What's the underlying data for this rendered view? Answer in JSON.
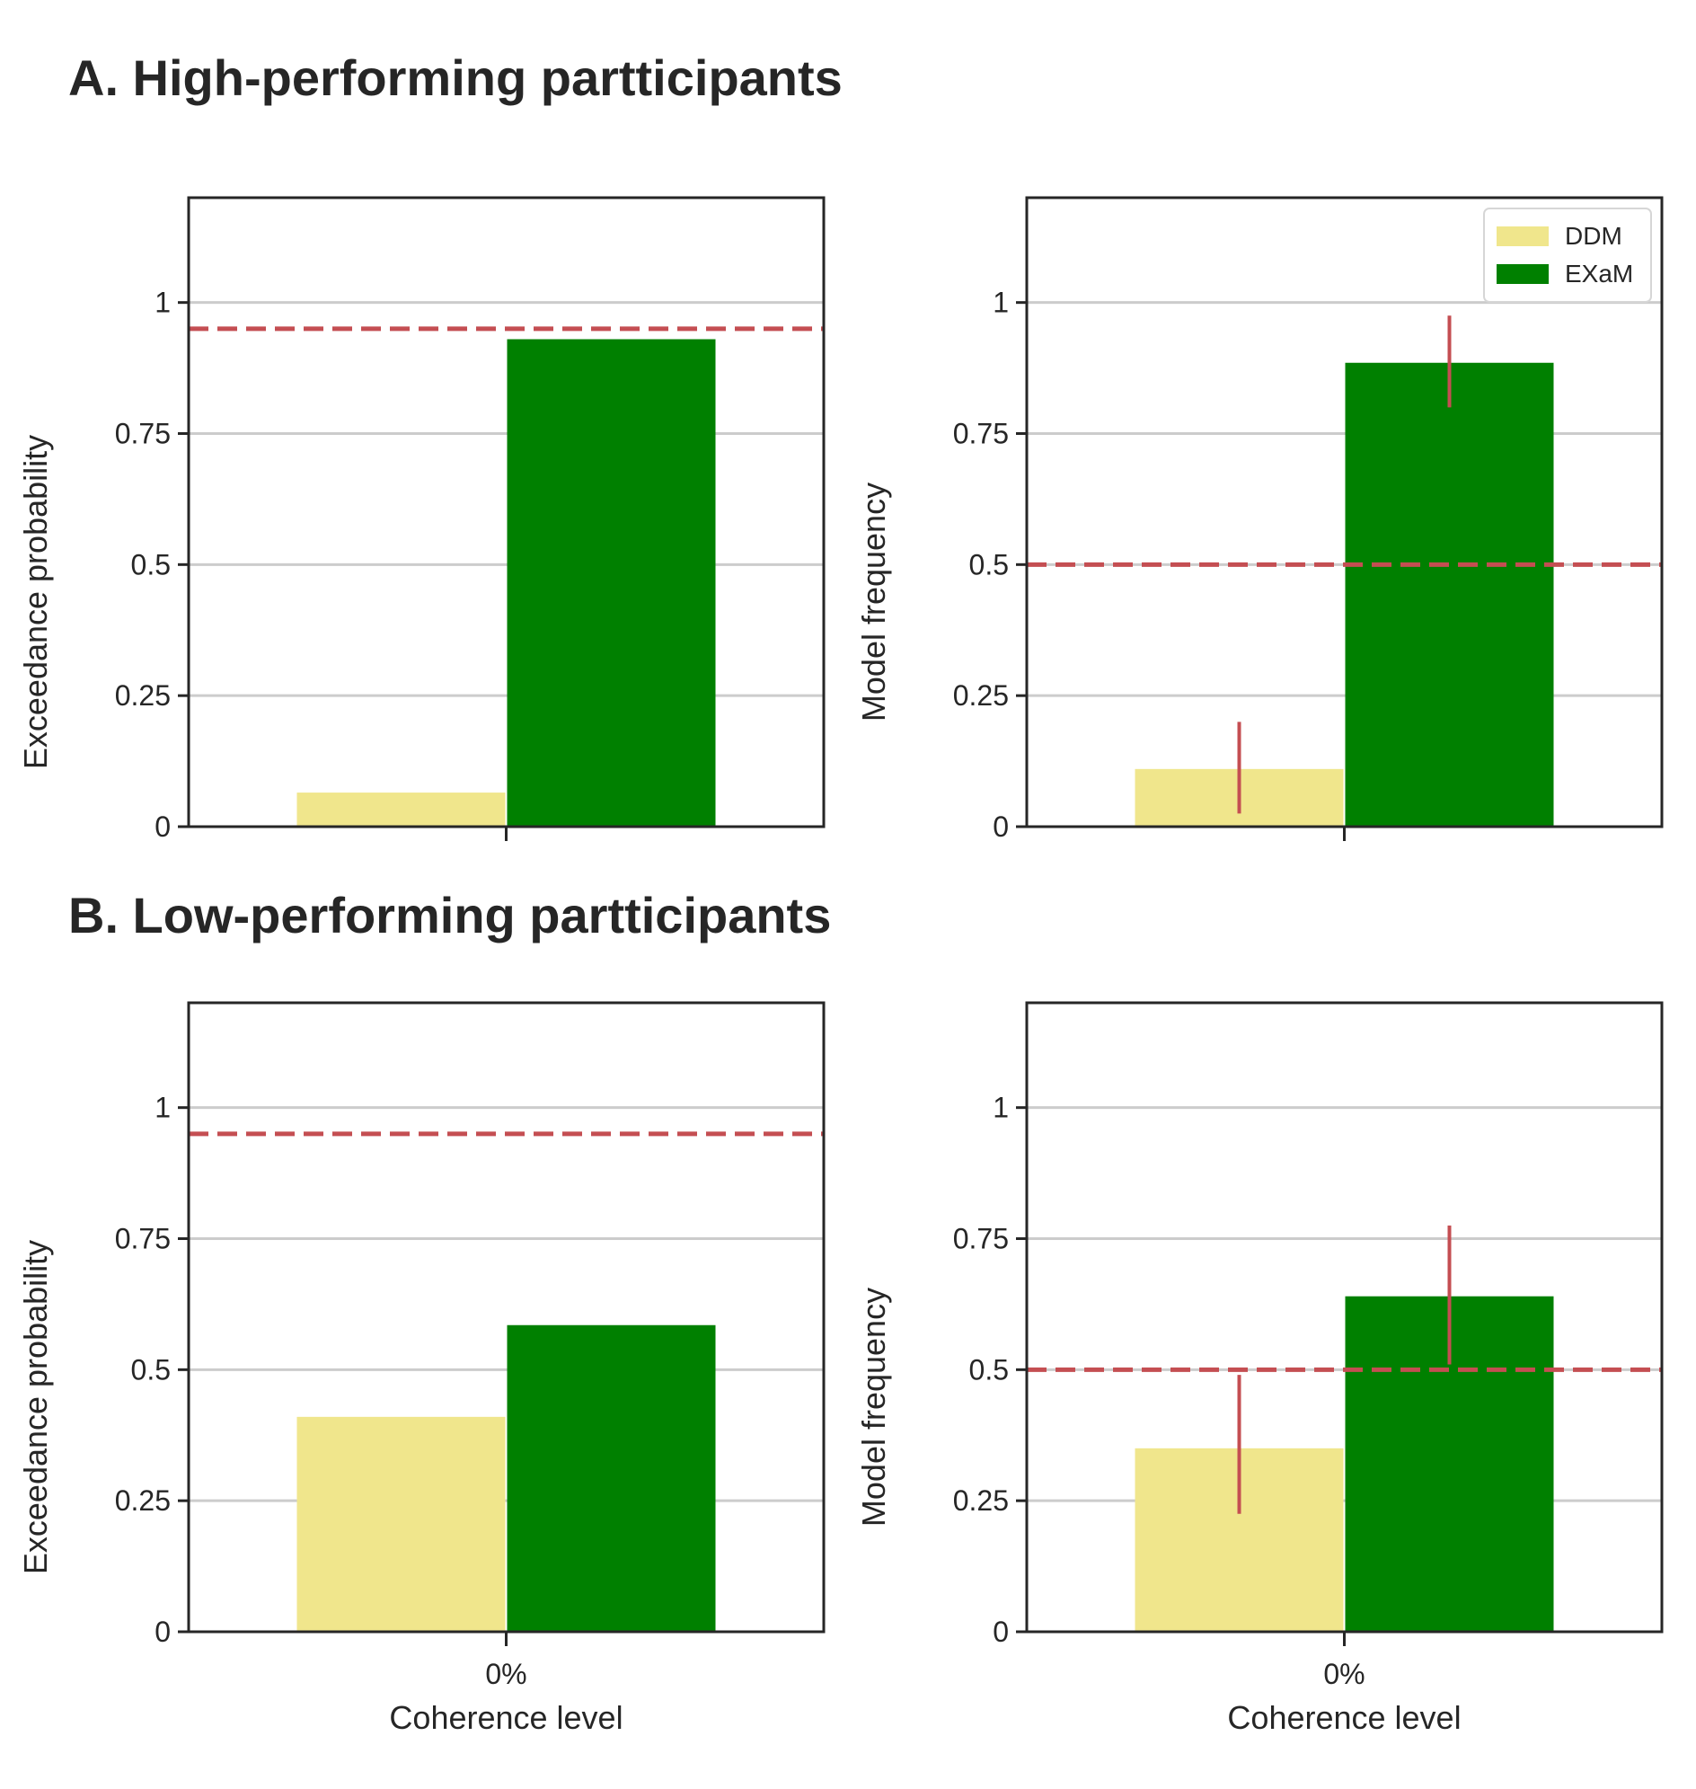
{
  "sections": {
    "a_title": "A. High-performing partticipants",
    "b_title": "B. Low-performing partticipants"
  },
  "colors": {
    "DDM": "#f0e68c",
    "EXaM": "#008000",
    "reference_line": "#c44e52",
    "error_bar": "#c44e52",
    "grid": "#cccccc",
    "frame": "#262626"
  },
  "legend": {
    "placement": "top-right",
    "entries": [
      "DDM",
      "EXaM"
    ]
  },
  "chart_data": [
    {
      "type": "bar",
      "panel": "A-left",
      "title": "",
      "categories": [
        "0%"
      ],
      "show_tick_labels": false,
      "xlabel": "",
      "ylabel": "Exceedance probability",
      "ylim": [
        0,
        1.2
      ],
      "yticks": [
        0,
        0.25,
        0.5,
        0.75,
        1
      ],
      "ytick_labels": [
        "0",
        "0.25",
        "0.5",
        "0.75",
        "1"
      ],
      "grid": "y",
      "reference_line": 0.95,
      "series": [
        {
          "name": "DDM",
          "values": [
            0.065
          ]
        },
        {
          "name": "EXaM",
          "values": [
            0.93
          ]
        }
      ]
    },
    {
      "type": "bar",
      "panel": "A-right",
      "title": "",
      "categories": [
        "0%"
      ],
      "show_tick_labels": false,
      "xlabel": "",
      "ylabel": "Model frequency",
      "ylim": [
        0,
        1.2
      ],
      "yticks": [
        0,
        0.25,
        0.5,
        0.75,
        1
      ],
      "ytick_labels": [
        "0",
        "0.25",
        "0.5",
        "0.75",
        "1"
      ],
      "grid": "y",
      "reference_line": 0.5,
      "legend": true,
      "series": [
        {
          "name": "DDM",
          "values": [
            0.11
          ],
          "error": [
            [
              0.025,
              0.2
            ]
          ]
        },
        {
          "name": "EXaM",
          "values": [
            0.885
          ],
          "error": [
            [
              0.8,
              0.975
            ]
          ]
        }
      ]
    },
    {
      "type": "bar",
      "panel": "B-left",
      "title": "",
      "categories": [
        "0%"
      ],
      "show_tick_labels": true,
      "xlabel": "Coherence level",
      "ylabel": "Exceedance probability",
      "ylim": [
        0,
        1.2
      ],
      "yticks": [
        0,
        0.25,
        0.5,
        0.75,
        1
      ],
      "ytick_labels": [
        "0",
        "0.25",
        "0.5",
        "0.75",
        "1"
      ],
      "grid": "y",
      "reference_line": 0.95,
      "series": [
        {
          "name": "DDM",
          "values": [
            0.41
          ]
        },
        {
          "name": "EXaM",
          "values": [
            0.585
          ]
        }
      ]
    },
    {
      "type": "bar",
      "panel": "B-right",
      "title": "",
      "categories": [
        "0%"
      ],
      "show_tick_labels": true,
      "xlabel": "Coherence level",
      "ylabel": "Model frequency",
      "ylim": [
        0,
        1.2
      ],
      "yticks": [
        0,
        0.25,
        0.5,
        0.75,
        1
      ],
      "ytick_labels": [
        "0",
        "0.25",
        "0.5",
        "0.75",
        "1"
      ],
      "grid": "y",
      "reference_line": 0.5,
      "series": [
        {
          "name": "DDM",
          "values": [
            0.35
          ],
          "error": [
            [
              0.225,
              0.49
            ]
          ]
        },
        {
          "name": "EXaM",
          "values": [
            0.64
          ],
          "error": [
            [
              0.51,
              0.775
            ]
          ]
        }
      ]
    }
  ]
}
